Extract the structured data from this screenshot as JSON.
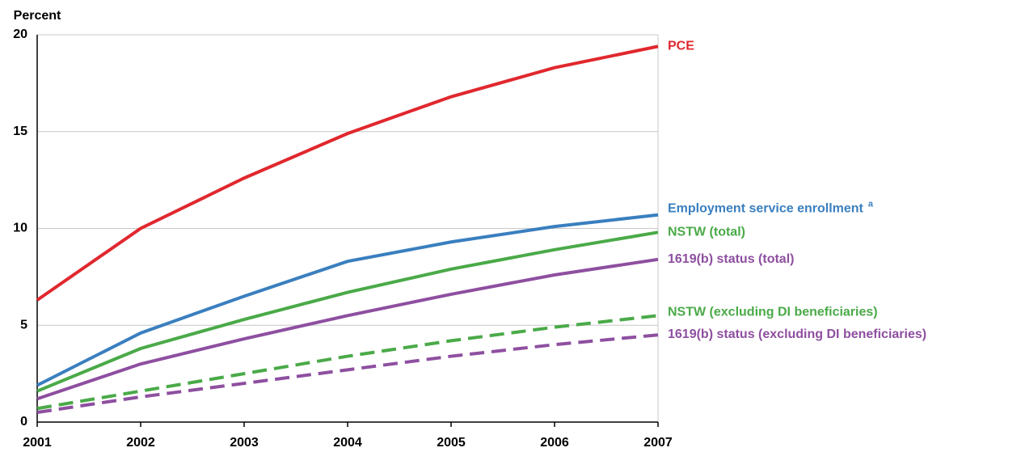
{
  "chart_data": {
    "type": "line",
    "y_label": "Percent",
    "x": [
      2001,
      2002,
      2003,
      2004,
      2005,
      2006,
      2007
    ],
    "xlim": [
      2001,
      2007
    ],
    "xticks": [
      2001,
      2002,
      2003,
      2004,
      2005,
      2006,
      2007
    ],
    "ylim": [
      0,
      20
    ],
    "yticks": [
      0,
      5,
      10,
      15,
      20
    ],
    "grid": true,
    "series": [
      {
        "name": "PCE",
        "color": "#e0282e",
        "style": "solid",
        "values": [
          6.3,
          10.0,
          12.6,
          14.9,
          16.8,
          18.3,
          19.4
        ]
      },
      {
        "name": "Employment service enrollment",
        "note_marker": "a",
        "color": "#3a7fbf",
        "style": "solid",
        "values": [
          1.9,
          4.6,
          6.5,
          8.3,
          9.3,
          10.1,
          10.7
        ]
      },
      {
        "name": "NSTW (total)",
        "color": "#4aaa48",
        "style": "solid",
        "values": [
          1.6,
          3.8,
          5.3,
          6.7,
          7.9,
          8.9,
          9.8
        ]
      },
      {
        "name": "1619(b) status (total)",
        "color": "#8e4fa0",
        "style": "solid",
        "values": [
          1.2,
          3.0,
          4.3,
          5.5,
          6.6,
          7.6,
          8.4
        ]
      },
      {
        "name": "NSTW (excluding DI beneficiaries)",
        "color": "#4aaa48",
        "style": "dashed",
        "values": [
          0.7,
          1.6,
          2.5,
          3.4,
          4.2,
          4.9,
          5.5
        ]
      },
      {
        "name": "1619(b) status (excluding DI beneficiaries)",
        "color": "#8e4fa0",
        "style": "dashed",
        "values": [
          0.5,
          1.3,
          2.0,
          2.7,
          3.4,
          4.0,
          4.5
        ]
      }
    ]
  }
}
